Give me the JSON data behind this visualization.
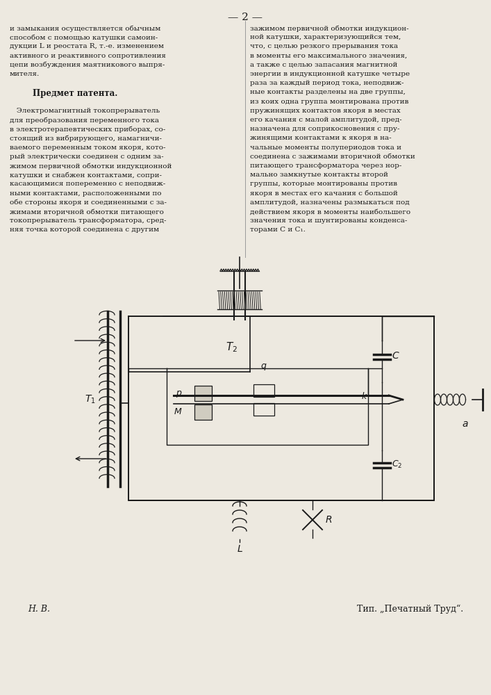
{
  "page_num": "2",
  "bg_color": "#ede9e0",
  "text_color": "#1a1a1a",
  "left_column_lines": [
    "и замыкания осуществляется обычным",
    "способом с помощью катушки самоин-",
    "дукции L и реостата R, т.-е. изменением",
    "активного и реактивного сопротивления",
    "цепи возбуждения маятникового выпря-",
    "мителя.",
    "",
    "        Предмет патента.",
    "",
    "   Электромагнитный токопрерыватель",
    "для преобразования переменного тока",
    "в электротерапевтических приборах, со-",
    "стоящий из вибрирующего, намагничи-",
    "ваемого переменным током якоря, кото-",
    "рый электрически соединен с одним за-",
    "жимом первичной обмотки индукционной",
    "катушки и снабжен контактами, сопри-",
    "касающимися попеременно с неподвиж-",
    "ными контактами, расположенными по",
    "обе стороны якоря и соединенными с за-",
    "жимами вторичной обмотки питающего",
    "токопрерыватель трансформатора, сред-",
    "няя точка которой соединена с другим"
  ],
  "right_column_lines": [
    "зажимом первичной обмотки индукцион-",
    "ной катушки, характеризующийся тем,",
    "что, с целью резкого прерывания тока",
    "в моменты его максимального значения,",
    "а также с целью запасания магнитной",
    "энергии в индукционной катушке четыре",
    "раза за каждый период тока, неподвиж-",
    "ные контакты разделены на две группы,",
    "из коих одна группа монтирована против",
    "пружинящих контактов якоря в местах",
    "его качания с малой амплитудой, пред-",
    "назначена для соприкосновения с пру-",
    "жинящими контактами к якоря в на-",
    "чальные моменты полупериодов тока и",
    "соединена с зажимами вторичной обмотки",
    "питающего трансформатора через нор-",
    "мально замкнутые контакты второй",
    "группы, которые монтированы против",
    "якоря в местах его качания с большой",
    "амплитудой, назначены размыкаться под",
    "действием якоря в моменты наибольшего",
    "значения тока и шунтированы конденса-",
    "торами С и С₁."
  ],
  "footer_left": "Н. В.",
  "footer_right": "Тип. „Печатный Труд“."
}
